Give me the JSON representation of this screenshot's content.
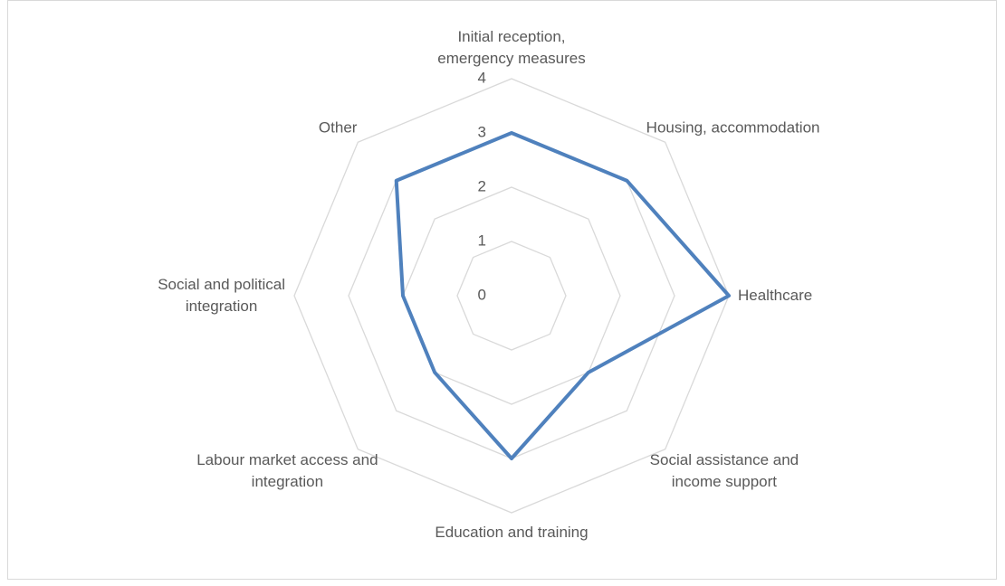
{
  "chart_data": {
    "type": "radar",
    "categories": [
      "Initial reception,\nemergency measures",
      "Housing, accommodation",
      "Healthcare",
      "Social assistance and\nincome support",
      "Education and training",
      "Labour market access and\nintegration",
      "Social and political\nintegration",
      "Other"
    ],
    "values": [
      3,
      3,
      4,
      2,
      3,
      2,
      2,
      3
    ],
    "color": "#4f81bd",
    "ylim": [
      0,
      4
    ],
    "yticks": [
      0,
      1,
      2,
      3,
      4
    ],
    "grid": true
  }
}
